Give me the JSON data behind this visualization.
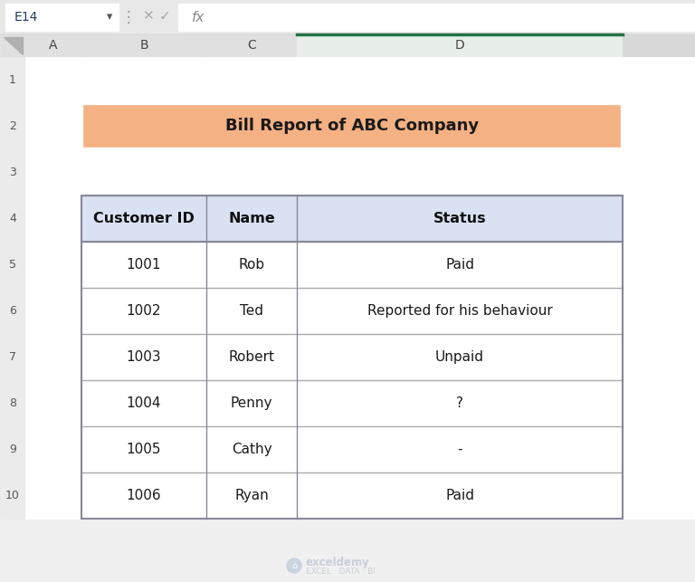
{
  "title": "Bill Report of ABC Company",
  "title_bg": "#F4B183",
  "title_border": "#C07050",
  "header_bg": "#D9E1F2",
  "col_headers": [
    "Customer ID",
    "Name",
    "Status"
  ],
  "rows": [
    [
      "1001",
      "Rob",
      "Paid"
    ],
    [
      "1002",
      "Ted",
      "Reported for his behaviour"
    ],
    [
      "1003",
      "Robert",
      "Unpaid"
    ],
    [
      "1004",
      "Penny",
      "?"
    ],
    [
      "1005",
      "Cathy",
      "-"
    ],
    [
      "1006",
      "Ryan",
      "Paid"
    ]
  ],
  "fig_bg": "#F0F0F0",
  "sheet_bg": "#FFFFFF",
  "col_header_bg": "#E8E8E8",
  "row_header_bg": "#E8E8E8",
  "col_labels": [
    "A",
    "B",
    "C",
    "D"
  ],
  "name_box": "E14",
  "formula_bar_bg": "#F0F0F0",
  "watermark_text": "exceldemy",
  "watermark_sub": "EXCEL · DATA · BI",
  "watermark_color": "#C8D0DC",
  "grid_color": "#C8C8C8",
  "border_color": "#AAAAAA",
  "table_border_color": "#888899",
  "d_col_green": "#217346"
}
